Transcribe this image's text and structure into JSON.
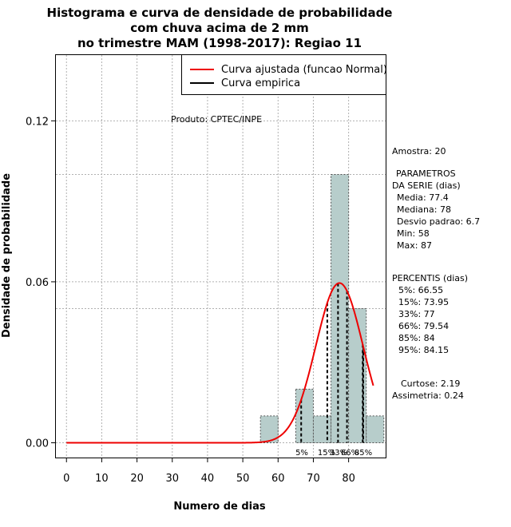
{
  "chart_data": {
    "type": "bar",
    "title_lines": [
      "Histograma e curva de densidade de probabilidade",
      "com chuva acima de 2 mm",
      "no trimestre MAM (1998-2017): Regiao 11"
    ],
    "xlabel": "Numero de dias",
    "ylabel": "Densidade de probabilidade",
    "xlim": [
      -3,
      90.5
    ],
    "ylim": [
      -0.0055,
      0.1445
    ],
    "x_ticks": [
      0,
      10,
      20,
      30,
      40,
      50,
      60,
      70,
      80
    ],
    "x_tick_labels": [
      "0",
      "10",
      "20",
      "30",
      "40",
      "50",
      "60",
      "70",
      "80"
    ],
    "y_ticks": [
      0.0,
      0.06,
      0.12
    ],
    "y_tick_labels": [
      "0.00",
      "0.06",
      "0.12"
    ],
    "extra_gridlines_y": [
      0.05,
      0.1
    ],
    "bin_width": 5,
    "bins": [
      {
        "start": 55,
        "end": 60,
        "density": 0.01
      },
      {
        "start": 60,
        "end": 65,
        "density": 0.0
      },
      {
        "start": 65,
        "end": 70,
        "density": 0.02
      },
      {
        "start": 70,
        "end": 75,
        "density": 0.01
      },
      {
        "start": 75,
        "end": 80,
        "density": 0.1
      },
      {
        "start": 80,
        "end": 85,
        "density": 0.05
      },
      {
        "start": 85,
        "end": 90,
        "density": 0.01
      }
    ],
    "normal_curve": {
      "name": "Curva ajustada (funcao Normal)",
      "mean": 77.4,
      "sd": 6.7,
      "x_range": [
        0,
        87
      ],
      "color": "#ee0000"
    },
    "empirical_curve": {
      "name": "Curva empirica",
      "color": "#000000"
    },
    "percentile_lines": [
      {
        "label": "5%",
        "value": 66.55
      },
      {
        "label": "15%",
        "value": 73.95
      },
      {
        "label": "33%",
        "value": 77
      },
      {
        "label": "66%",
        "value": 79.54
      },
      {
        "label": "85%",
        "value": 84
      },
      {
        "label": "95%",
        "value": 84.15
      }
    ],
    "percentile_axis_labels": [
      "5%",
      "15%",
      "33%",
      "66%",
      "85%"
    ],
    "legend": {
      "position": "top-right",
      "entries": [
        {
          "label": "Curva ajustada (funcao Normal)",
          "color": "#ee0000"
        },
        {
          "label": "Curva empirica",
          "color": "#000000"
        }
      ]
    },
    "product_note": "Produto: CPTEC/INPE",
    "bar_color": "#b7cdcb"
  },
  "stats_panel": {
    "sample": "Amostra: 20",
    "params_title_1": "PARAMETROS",
    "params_title_2": "DA SERIE (dias)",
    "media": "Media: 77.4",
    "mediana": "Mediana: 78",
    "desvio": "Desvio padrao: 6.7",
    "min": "Min: 58",
    "max": "Max: 87",
    "percentis_title": "PERCENTIS (dias)",
    "p5": "5%: 66.55",
    "p15": "15%: 73.95",
    "p33": "33%: 77",
    "p66": "66%: 79.54",
    "p85": "85%: 84",
    "p95": "95%: 84.15",
    "curtose": "Curtose: 2.19",
    "assimetria": "Assimetria: 0.24"
  }
}
